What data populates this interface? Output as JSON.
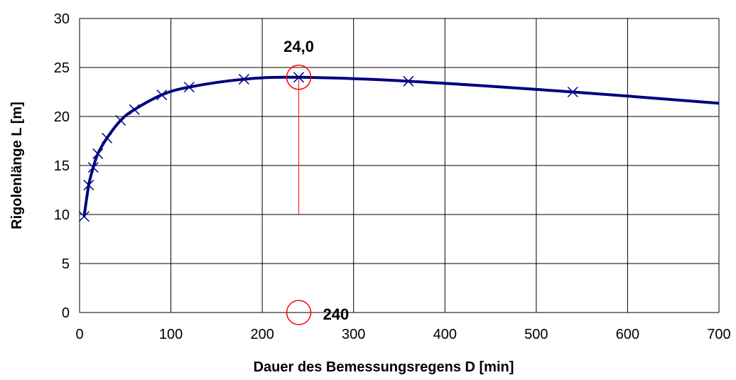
{
  "chart_data": {
    "type": "line",
    "title": "",
    "xlabel": "Dauer des Bemessungsregens  D [min]",
    "ylabel": "Rigolenlänge L [m]",
    "xlim": [
      0,
      700
    ],
    "ylim": [
      0,
      30
    ],
    "xticks": [
      0,
      100,
      200,
      300,
      400,
      500,
      600,
      700
    ],
    "yticks": [
      0,
      5,
      10,
      15,
      20,
      25,
      30
    ],
    "xtick_labels": [
      "0",
      "100",
      "200",
      "300",
      "400",
      "500",
      "600",
      "700"
    ],
    "ytick_labels": [
      "0",
      "5",
      "10",
      "15",
      "20",
      "25",
      "30"
    ],
    "grid": true,
    "series": [
      {
        "color": "#000080",
        "marker": "x",
        "x": [
          5,
          10,
          15,
          20,
          30,
          45,
          60,
          90,
          120,
          180,
          240,
          360,
          540,
          720
        ],
        "y": [
          9.8,
          13.0,
          14.8,
          16.2,
          17.8,
          19.6,
          20.7,
          22.2,
          23.0,
          23.8,
          24.0,
          23.6,
          22.5,
          21.2
        ],
        "markers_x": [
          5,
          10,
          15,
          20,
          30,
          45,
          60,
          90,
          120,
          180,
          240,
          360,
          540
        ],
        "markers_y": [
          9.8,
          13.0,
          14.8,
          16.2,
          17.8,
          19.6,
          20.7,
          22.2,
          23.0,
          23.8,
          24.0,
          23.6,
          22.5
        ]
      }
    ],
    "annotations": [
      {
        "label": "24,0",
        "x": 240,
        "y": 24.0,
        "marker": "circle",
        "color": "#ff0000"
      },
      {
        "label": "240",
        "x": 240,
        "y": 0,
        "marker": "circle",
        "color": "#ff0000"
      }
    ],
    "reference_line": {
      "x": 240,
      "y_from": 10,
      "y_to": 24.0,
      "color": "#ff0000"
    }
  }
}
